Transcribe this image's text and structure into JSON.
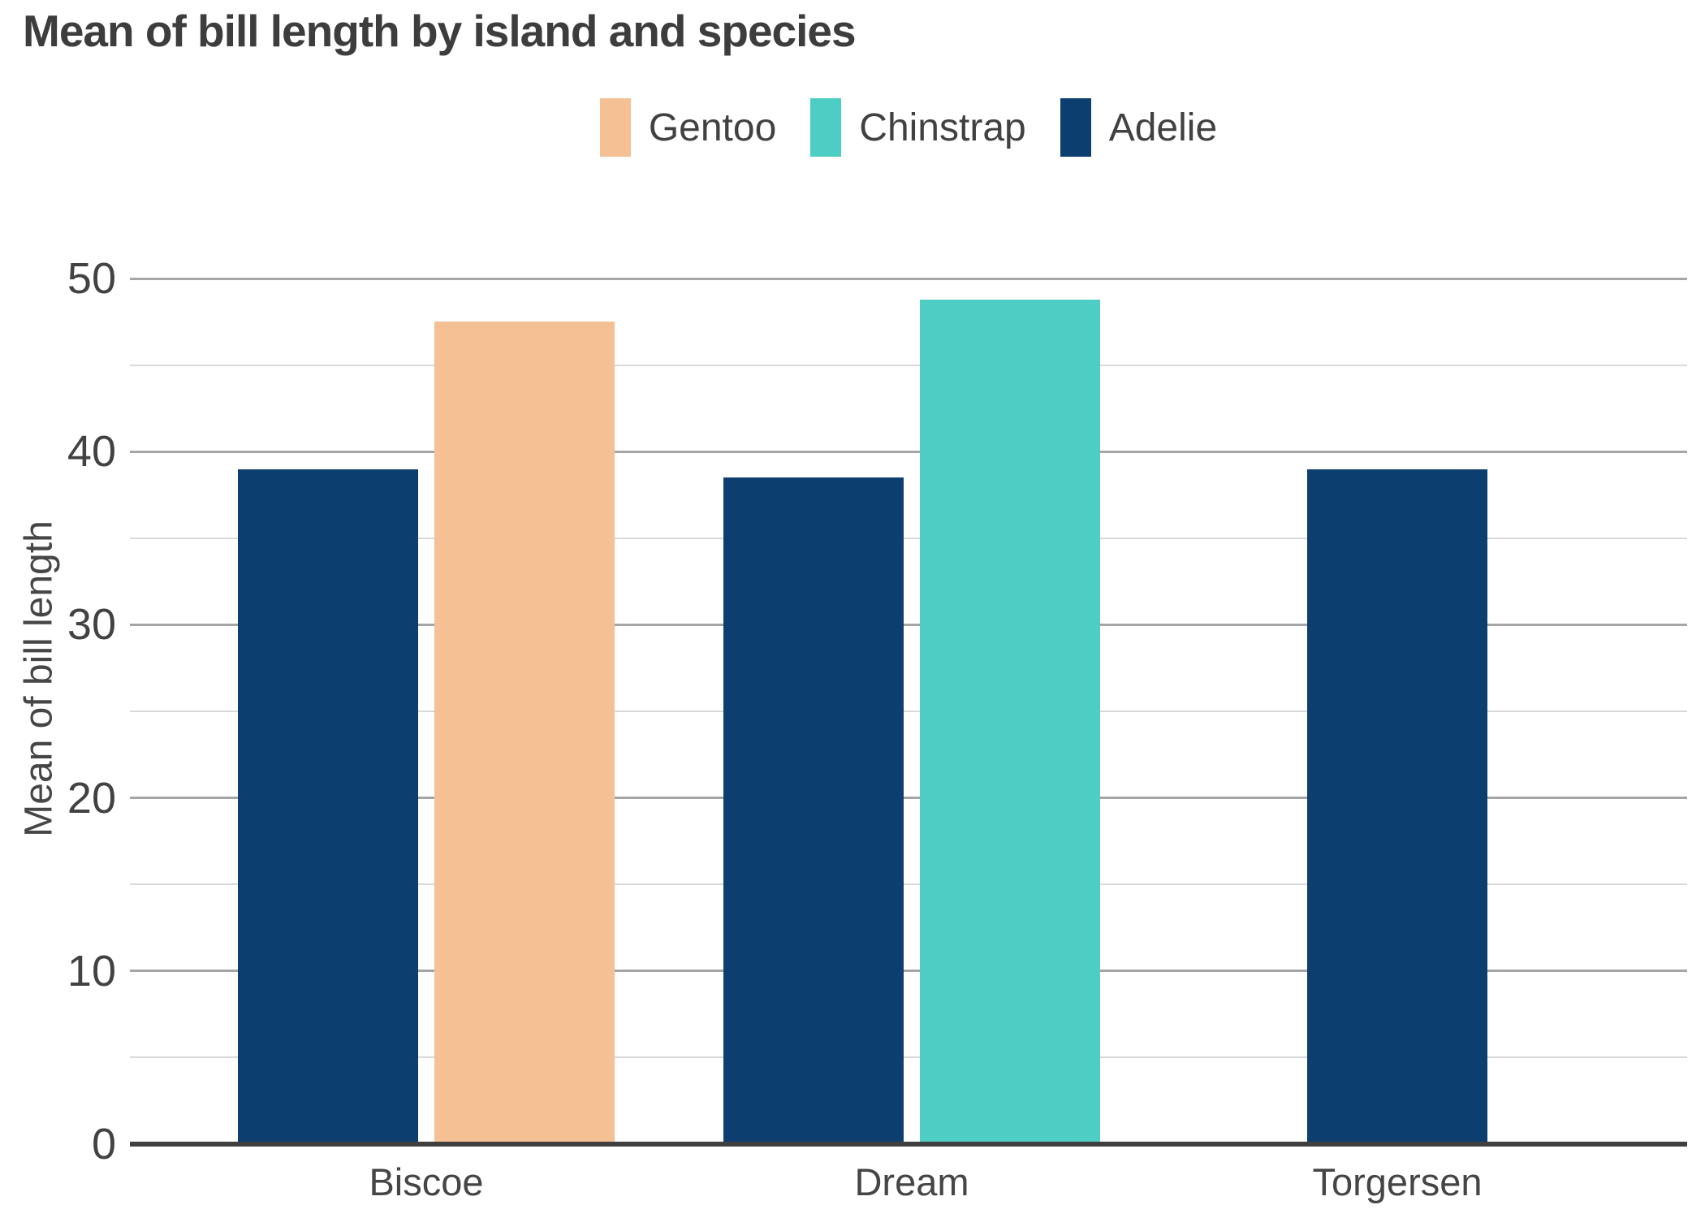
{
  "chart_data": {
    "type": "bar",
    "title": "Mean of bill length by island and species",
    "xlabel": "",
    "ylabel": "Mean of bill length",
    "categories": [
      "Biscoe",
      "Dream",
      "Torgersen"
    ],
    "series": [
      {
        "name": "Gentoo",
        "color": "#f4c094",
        "values": [
          47.5,
          null,
          null
        ]
      },
      {
        "name": "Chinstrap",
        "color": "#4dcdc4",
        "values": [
          null,
          48.8,
          null
        ]
      },
      {
        "name": "Adelie",
        "color": "#0d3e70",
        "values": [
          39.0,
          38.5,
          39.0
        ]
      }
    ],
    "groups": [
      {
        "category": "Biscoe",
        "bars": [
          {
            "series": "Adelie",
            "value": 39.0
          },
          {
            "series": "Gentoo",
            "value": 47.5
          }
        ]
      },
      {
        "category": "Dream",
        "bars": [
          {
            "series": "Adelie",
            "value": 38.5
          },
          {
            "series": "Chinstrap",
            "value": 48.8
          }
        ]
      },
      {
        "category": "Torgersen",
        "bars": [
          {
            "series": "Adelie",
            "value": 39.0
          }
        ]
      }
    ],
    "legend": [
      {
        "label": "Gentoo",
        "color": "#f4c094"
      },
      {
        "label": "Chinstrap",
        "color": "#4dcdc4"
      },
      {
        "label": "Adelie",
        "color": "#0d3e70"
      }
    ],
    "y_axis": {
      "ylim": [
        0,
        50
      ],
      "ticks": [
        0,
        10,
        20,
        30,
        40,
        50
      ],
      "minor_ticks": [
        5,
        15,
        25,
        35,
        45
      ]
    },
    "grid": "horizontal major and minor gridlines, no vertical grid",
    "legend_position": "top-center",
    "style_colors": {
      "title_text": "#3d3d3d",
      "axis_text": "#454545",
      "major_grid": "#a5a5a5",
      "minor_grid": "#d9d9d9",
      "baseline": "#3f3f3f",
      "background": "#ffffff"
    }
  }
}
